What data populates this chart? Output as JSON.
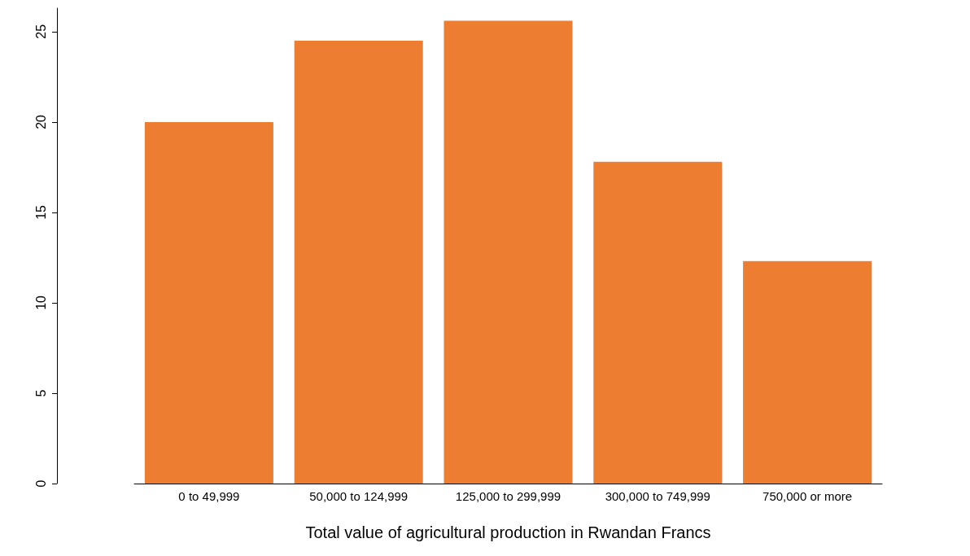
{
  "chart_data": {
    "type": "bar",
    "xlabel": "Total value of agricultural production in Rwandan Francs",
    "categories": [
      "0 to 49,999",
      "50,000 to 124,999",
      "125,000 to 299,999",
      "300,000 to 749,999",
      "750,000 or more"
    ],
    "values": [
      20.0,
      24.5,
      25.6,
      17.8,
      12.3
    ],
    "color": "#ed7d31",
    "ylim": [
      0,
      26.3
    ],
    "yticks": [
      0,
      5,
      10,
      15,
      20,
      25
    ]
  }
}
